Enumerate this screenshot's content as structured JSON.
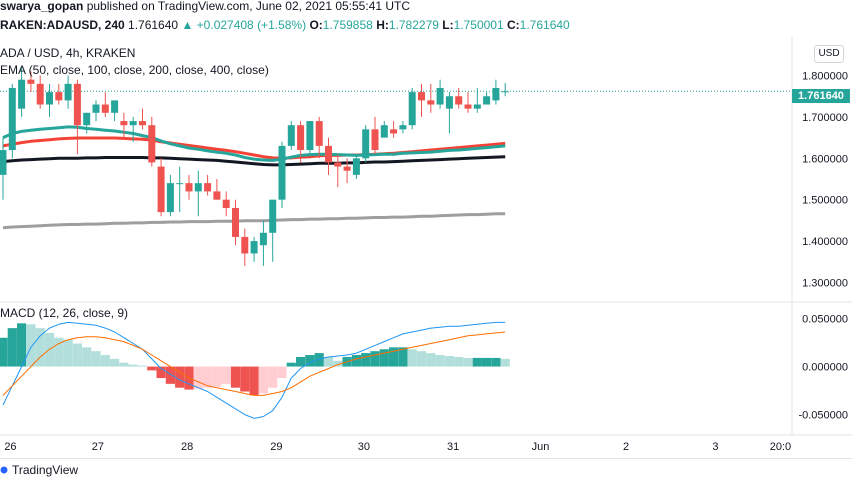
{
  "header": {
    "author": "swarya_gopan",
    "published_text": " published on TradingView.com, June 02, 2021 05:55:41 UTC"
  },
  "info": {
    "symbol": "RAKEN:ADAUSD, 240",
    "last": "1.761640",
    "change": "+0.027408 (+1.58%)",
    "o_label": "O:",
    "o": "1.759858",
    "h_label": "H:",
    "h": "1.782279",
    "l_label": "L:",
    "l": "1.750001",
    "c_label": "C:",
    "c": "1.761640"
  },
  "legend": {
    "title": "ADA / USD, 4h, KRAKEN",
    "ema": "EMA (50, close, 100, close, 200, close, 400, close)",
    "macd": "MACD (12, 26, close, 9)"
  },
  "currency_badge": "USD",
  "last_price_tag": "1.761640",
  "price_axis": [
    "1.800000",
    "1.700000",
    "1.600000",
    "1.500000",
    "1.400000",
    "1.300000"
  ],
  "macd_axis": [
    "0.050000",
    "0.000000",
    "-0.050000"
  ],
  "time_axis": [
    "26",
    "27",
    "28",
    "29",
    "30",
    "31",
    "Jun",
    "2",
    "3",
    "20:0"
  ],
  "footer": {
    "brand": "TradingView"
  },
  "colors": {
    "up": "#26a69a",
    "down": "#ef5350",
    "ema50": "#26a69a",
    "ema100": "#f44336",
    "ema200": "#131722",
    "ema400": "#9e9e9e",
    "macd_line": "#2196f3",
    "signal_line": "#ff6d00"
  },
  "chart_data": {
    "type": "candlestick",
    "candles": [
      {
        "o": 1.56,
        "h": 1.65,
        "l": 1.5,
        "c": 1.62
      },
      {
        "o": 1.62,
        "h": 1.78,
        "l": 1.6,
        "c": 1.77
      },
      {
        "o": 1.72,
        "h": 1.82,
        "l": 1.7,
        "c": 1.79
      },
      {
        "o": 1.79,
        "h": 1.81,
        "l": 1.76,
        "c": 1.78
      },
      {
        "o": 1.78,
        "h": 1.8,
        "l": 1.72,
        "c": 1.73
      },
      {
        "o": 1.73,
        "h": 1.78,
        "l": 1.7,
        "c": 1.76
      },
      {
        "o": 1.76,
        "h": 1.78,
        "l": 1.73,
        "c": 1.74
      },
      {
        "o": 1.74,
        "h": 1.8,
        "l": 1.72,
        "c": 1.78
      },
      {
        "o": 1.78,
        "h": 1.79,
        "l": 1.61,
        "c": 1.68
      },
      {
        "o": 1.68,
        "h": 1.71,
        "l": 1.66,
        "c": 1.71
      },
      {
        "o": 1.71,
        "h": 1.74,
        "l": 1.69,
        "c": 1.73
      },
      {
        "o": 1.73,
        "h": 1.76,
        "l": 1.7,
        "c": 1.71
      },
      {
        "o": 1.71,
        "h": 1.74,
        "l": 1.69,
        "c": 1.74
      },
      {
        "o": 1.69,
        "h": 1.71,
        "l": 1.65,
        "c": 1.68
      },
      {
        "o": 1.68,
        "h": 1.7,
        "l": 1.64,
        "c": 1.69
      },
      {
        "o": 1.69,
        "h": 1.72,
        "l": 1.67,
        "c": 1.68
      },
      {
        "o": 1.68,
        "h": 1.7,
        "l": 1.58,
        "c": 1.59
      },
      {
        "o": 1.58,
        "h": 1.6,
        "l": 1.46,
        "c": 1.47
      },
      {
        "o": 1.47,
        "h": 1.56,
        "l": 1.46,
        "c": 1.54
      },
      {
        "o": 1.54,
        "h": 1.58,
        "l": 1.47,
        "c": 1.54
      },
      {
        "o": 1.54,
        "h": 1.56,
        "l": 1.5,
        "c": 1.52
      },
      {
        "o": 1.52,
        "h": 1.57,
        "l": 1.46,
        "c": 1.54
      },
      {
        "o": 1.54,
        "h": 1.56,
        "l": 1.51,
        "c": 1.52
      },
      {
        "o": 1.52,
        "h": 1.55,
        "l": 1.5,
        "c": 1.5
      },
      {
        "o": 1.5,
        "h": 1.52,
        "l": 1.46,
        "c": 1.48
      },
      {
        "o": 1.48,
        "h": 1.5,
        "l": 1.39,
        "c": 1.41
      },
      {
        "o": 1.41,
        "h": 1.43,
        "l": 1.34,
        "c": 1.37
      },
      {
        "o": 1.37,
        "h": 1.41,
        "l": 1.35,
        "c": 1.4
      },
      {
        "o": 1.39,
        "h": 1.45,
        "l": 1.34,
        "c": 1.42
      },
      {
        "o": 1.42,
        "h": 1.5,
        "l": 1.35,
        "c": 1.5
      },
      {
        "o": 1.5,
        "h": 1.64,
        "l": 1.48,
        "c": 1.63
      },
      {
        "o": 1.63,
        "h": 1.69,
        "l": 1.62,
        "c": 1.68
      },
      {
        "o": 1.68,
        "h": 1.69,
        "l": 1.59,
        "c": 1.62
      },
      {
        "o": 1.62,
        "h": 1.69,
        "l": 1.61,
        "c": 1.69
      },
      {
        "o": 1.69,
        "h": 1.7,
        "l": 1.6,
        "c": 1.63
      },
      {
        "o": 1.63,
        "h": 1.65,
        "l": 1.56,
        "c": 1.59
      },
      {
        "o": 1.59,
        "h": 1.61,
        "l": 1.53,
        "c": 1.58
      },
      {
        "o": 1.58,
        "h": 1.6,
        "l": 1.54,
        "c": 1.57
      },
      {
        "o": 1.56,
        "h": 1.61,
        "l": 1.55,
        "c": 1.6
      },
      {
        "o": 1.6,
        "h": 1.68,
        "l": 1.59,
        "c": 1.67
      },
      {
        "o": 1.67,
        "h": 1.7,
        "l": 1.61,
        "c": 1.62
      },
      {
        "o": 1.65,
        "h": 1.69,
        "l": 1.65,
        "c": 1.68
      },
      {
        "o": 1.67,
        "h": 1.69,
        "l": 1.65,
        "c": 1.66
      },
      {
        "o": 1.67,
        "h": 1.69,
        "l": 1.66,
        "c": 1.68
      },
      {
        "o": 1.68,
        "h": 1.77,
        "l": 1.67,
        "c": 1.76
      },
      {
        "o": 1.76,
        "h": 1.78,
        "l": 1.7,
        "c": 1.74
      },
      {
        "o": 1.74,
        "h": 1.78,
        "l": 1.71,
        "c": 1.73
      },
      {
        "o": 1.73,
        "h": 1.79,
        "l": 1.72,
        "c": 1.77
      },
      {
        "o": 1.72,
        "h": 1.76,
        "l": 1.66,
        "c": 1.75
      },
      {
        "o": 1.75,
        "h": 1.77,
        "l": 1.72,
        "c": 1.73
      },
      {
        "o": 1.73,
        "h": 1.76,
        "l": 1.71,
        "c": 1.72
      },
      {
        "o": 1.72,
        "h": 1.77,
        "l": 1.71,
        "c": 1.73
      },
      {
        "o": 1.73,
        "h": 1.76,
        "l": 1.73,
        "c": 1.75
      },
      {
        "o": 1.74,
        "h": 1.79,
        "l": 1.73,
        "c": 1.77
      },
      {
        "o": 1.76,
        "h": 1.782,
        "l": 1.75,
        "c": 1.762
      }
    ],
    "ema50": [
      1.65,
      1.66,
      1.665,
      1.668,
      1.67,
      1.672,
      1.674,
      1.676,
      1.675,
      1.672,
      1.67,
      1.668,
      1.666,
      1.663,
      1.66,
      1.655,
      1.65,
      1.642,
      1.635,
      1.63,
      1.625,
      1.622,
      1.618,
      1.615,
      1.612,
      1.608,
      1.602,
      1.598,
      1.596,
      1.595,
      1.598,
      1.603,
      1.607,
      1.609,
      1.61,
      1.61,
      1.609,
      1.608,
      1.607,
      1.608,
      1.609,
      1.61,
      1.61,
      1.612,
      1.613,
      1.614,
      1.615,
      1.617,
      1.619,
      1.62,
      1.622,
      1.624,
      1.626,
      1.628,
      1.63
    ],
    "ema100": [
      1.63,
      1.634,
      1.638,
      1.641,
      1.643,
      1.645,
      1.647,
      1.648,
      1.649,
      1.649,
      1.649,
      1.649,
      1.649,
      1.648,
      1.647,
      1.646,
      1.644,
      1.64,
      1.637,
      1.634,
      1.631,
      1.628,
      1.625,
      1.622,
      1.619,
      1.616,
      1.612,
      1.608,
      1.604,
      1.601,
      1.6,
      1.601,
      1.603,
      1.604,
      1.606,
      1.607,
      1.607,
      1.608,
      1.608,
      1.609,
      1.61,
      1.611,
      1.612,
      1.614,
      1.616,
      1.618,
      1.62,
      1.622,
      1.624,
      1.626,
      1.628,
      1.63,
      1.632,
      1.634,
      1.636
    ],
    "ema200": [
      1.592,
      1.594,
      1.596,
      1.597,
      1.598,
      1.599,
      1.6,
      1.6,
      1.6,
      1.601,
      1.601,
      1.602,
      1.602,
      1.602,
      1.602,
      1.602,
      1.601,
      1.601,
      1.6,
      1.599,
      1.598,
      1.597,
      1.596,
      1.595,
      1.593,
      1.591,
      1.589,
      1.587,
      1.585,
      1.584,
      1.584,
      1.585,
      1.586,
      1.587,
      1.588,
      1.588,
      1.588,
      1.589,
      1.589,
      1.59,
      1.591,
      1.591,
      1.592,
      1.593,
      1.594,
      1.595,
      1.596,
      1.597,
      1.598,
      1.599,
      1.6,
      1.601,
      1.602,
      1.603,
      1.604
    ],
    "ema400": [
      1.432,
      1.434,
      1.435,
      1.436,
      1.437,
      1.438,
      1.439,
      1.44,
      1.44,
      1.441,
      1.441,
      1.442,
      1.443,
      1.443,
      1.444,
      1.444,
      1.445,
      1.445,
      1.446,
      1.446,
      1.447,
      1.447,
      1.447,
      1.448,
      1.448,
      1.448,
      1.449,
      1.449,
      1.449,
      1.45,
      1.451,
      1.452,
      1.452,
      1.453,
      1.453,
      1.454,
      1.454,
      1.455,
      1.455,
      1.456,
      1.457,
      1.457,
      1.458,
      1.458,
      1.459,
      1.46,
      1.46,
      1.461,
      1.462,
      1.463,
      1.464,
      1.464,
      1.465,
      1.466,
      1.466
    ],
    "macd_hist": [
      0.03,
      0.04,
      0.045,
      0.044,
      0.04,
      0.035,
      0.03,
      0.028,
      0.024,
      0.02,
      0.016,
      0.012,
      0.008,
      0.004,
      0.002,
      0.001,
      -0.004,
      -0.012,
      -0.018,
      -0.022,
      -0.024,
      -0.023,
      -0.022,
      -0.021,
      -0.018,
      -0.022,
      -0.026,
      -0.03,
      -0.028,
      -0.022,
      -0.012,
      0.004,
      0.01,
      0.012,
      0.014,
      0.01,
      0.006,
      0.01,
      0.012,
      0.014,
      0.016,
      0.018,
      0.02,
      0.02,
      0.018,
      0.016,
      0.014,
      0.012,
      0.011,
      0.01,
      0.009,
      0.009,
      0.009,
      0.009,
      0.008
    ],
    "macd_line": [
      -0.04,
      -0.02,
      0.0,
      0.02,
      0.032,
      0.04,
      0.044,
      0.046,
      0.045,
      0.044,
      0.043,
      0.04,
      0.036,
      0.03,
      0.024,
      0.018,
      0.008,
      -0.002,
      -0.008,
      -0.014,
      -0.018,
      -0.022,
      -0.026,
      -0.032,
      -0.038,
      -0.044,
      -0.05,
      -0.054,
      -0.052,
      -0.046,
      -0.032,
      -0.012,
      -0.002,
      0.004,
      0.008,
      0.01,
      0.011,
      0.012,
      0.014,
      0.018,
      0.022,
      0.026,
      0.03,
      0.034,
      0.036,
      0.038,
      0.04,
      0.041,
      0.042,
      0.042,
      0.043,
      0.044,
      0.045,
      0.046,
      0.046
    ],
    "signal_line": [
      -0.03,
      -0.02,
      -0.01,
      0.0,
      0.01,
      0.018,
      0.024,
      0.028,
      0.03,
      0.031,
      0.031,
      0.03,
      0.028,
      0.026,
      0.022,
      0.018,
      0.012,
      0.006,
      0.0,
      -0.006,
      -0.012,
      -0.016,
      -0.02,
      -0.022,
      -0.024,
      -0.026,
      -0.028,
      -0.03,
      -0.03,
      -0.028,
      -0.026,
      -0.022,
      -0.016,
      -0.01,
      -0.006,
      -0.002,
      0.002,
      0.005,
      0.008,
      0.01,
      0.012,
      0.014,
      0.016,
      0.018,
      0.02,
      0.022,
      0.024,
      0.026,
      0.028,
      0.03,
      0.032,
      0.033,
      0.034,
      0.035,
      0.036
    ],
    "price_range": [
      1.26,
      1.84
    ],
    "macd_range": [
      -0.065,
      0.062
    ]
  }
}
